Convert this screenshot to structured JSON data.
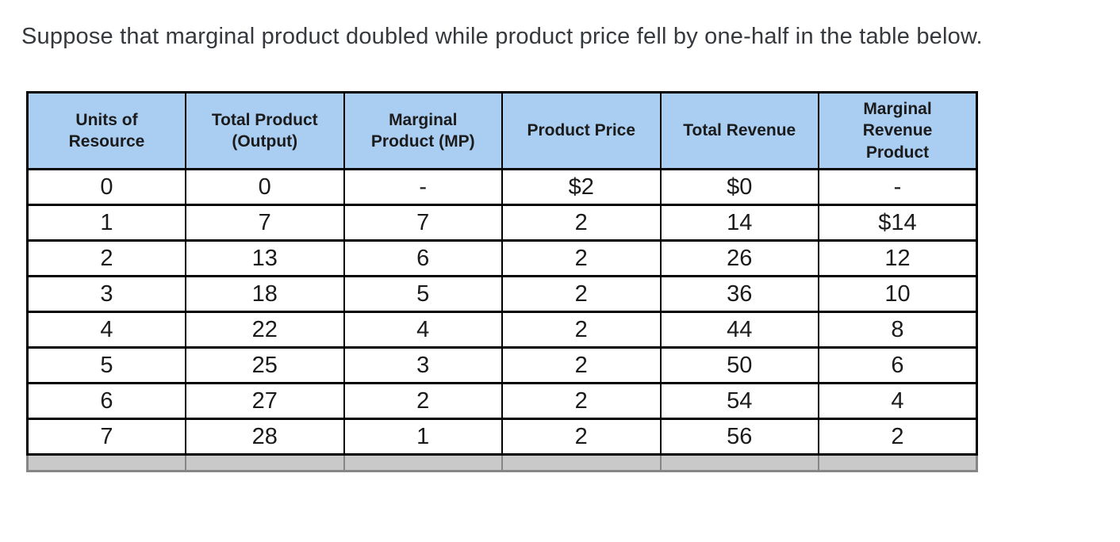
{
  "question": {
    "text": "Suppose that marginal product doubled while product price fell by one-half in the table below."
  },
  "table": {
    "headers": [
      "Units of\nResource",
      "Total Product\n(Output)",
      "Marginal\nProduct (MP)",
      "Product Price",
      "Total Revenue",
      "Marginal\nRevenue\nProduct"
    ],
    "rows": [
      [
        "0",
        "0",
        "-",
        "$2",
        "$0",
        "-"
      ],
      [
        "1",
        "7",
        "7",
        "2",
        "14",
        "$14"
      ],
      [
        "2",
        "13",
        "6",
        "2",
        "26",
        "12"
      ],
      [
        "3",
        "18",
        "5",
        "2",
        "36",
        "10"
      ],
      [
        "4",
        "22",
        "4",
        "2",
        "44",
        "8"
      ],
      [
        "5",
        "25",
        "3",
        "2",
        "50",
        "6"
      ],
      [
        "6",
        "27",
        "2",
        "2",
        "54",
        "4"
      ],
      [
        "7",
        "28",
        "1",
        "2",
        "56",
        "2"
      ]
    ],
    "colors": {
      "header_bg": "#aacdf2",
      "grid": "#000000",
      "text": "#1b1b1b",
      "title_text": "#35393d",
      "footer_bg": "#c9c9c9",
      "footer_border": "#868686"
    }
  }
}
